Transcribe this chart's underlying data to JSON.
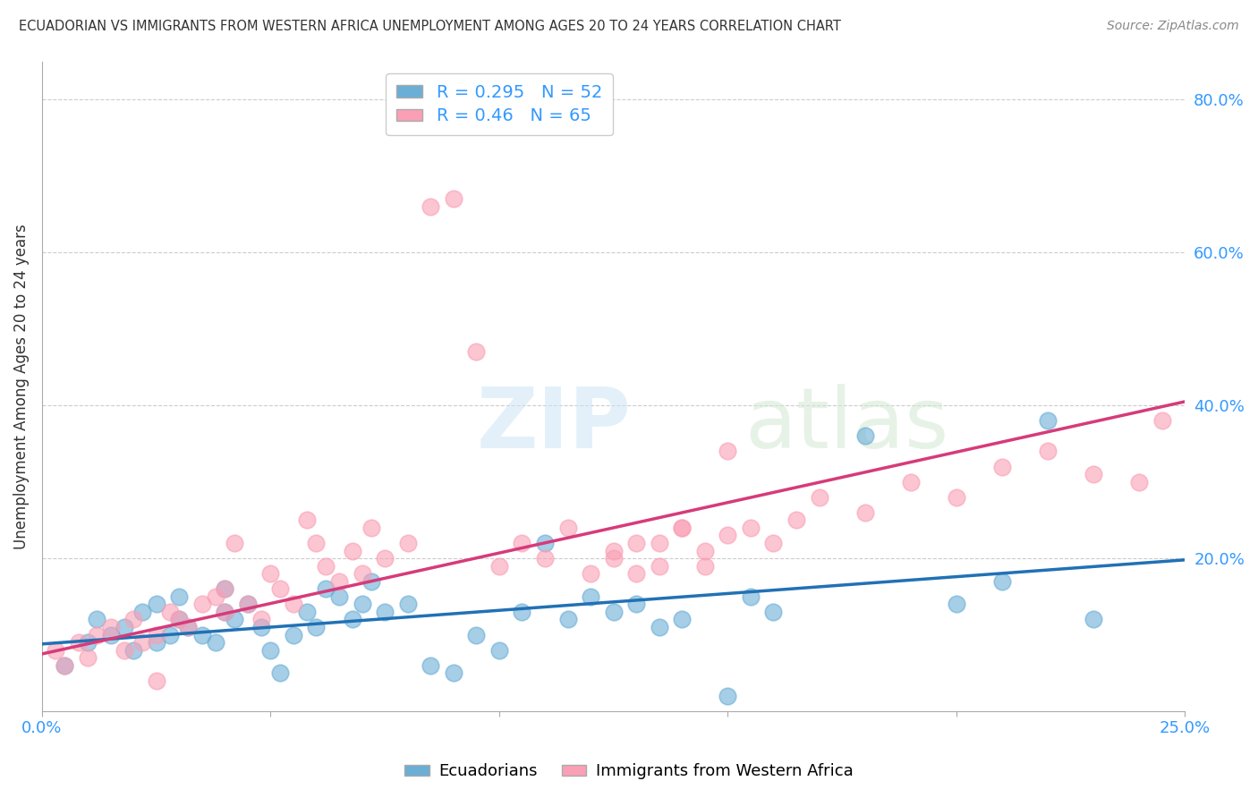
{
  "title": "ECUADORIAN VS IMMIGRANTS FROM WESTERN AFRICA UNEMPLOYMENT AMONG AGES 20 TO 24 YEARS CORRELATION CHART",
  "source": "Source: ZipAtlas.com",
  "ylabel": "Unemployment Among Ages 20 to 24 years",
  "xlim": [
    0.0,
    0.25
  ],
  "ylim": [
    0.0,
    0.85
  ],
  "xticks": [
    0.0,
    0.05,
    0.1,
    0.15,
    0.2,
    0.25
  ],
  "xtick_labels": [
    "0.0%",
    "",
    "",
    "",
    "",
    "25.0%"
  ],
  "yticks_right": [
    0.0,
    0.2,
    0.4,
    0.6,
    0.8
  ],
  "ytick_labels_right": [
    "",
    "20.0%",
    "40.0%",
    "60.0%",
    "80.0%"
  ],
  "blue_color": "#6baed6",
  "blue_line_color": "#2171b5",
  "pink_color": "#fa9fb5",
  "pink_line_color": "#d63b7a",
  "R_blue": 0.295,
  "N_blue": 52,
  "R_pink": 0.46,
  "N_pink": 65,
  "watermark_zip": "ZIP",
  "watermark_atlas": "atlas",
  "legend_labels": [
    "Ecuadorians",
    "Immigrants from Western Africa"
  ],
  "blue_line_x0": 0.0,
  "blue_line_y0": 0.088,
  "blue_line_x1": 0.25,
  "blue_line_y1": 0.198,
  "pink_line_x0": 0.0,
  "pink_line_y0": 0.075,
  "pink_line_x1": 0.25,
  "pink_line_y1": 0.405,
  "blue_scatter_x": [
    0.005,
    0.01,
    0.012,
    0.015,
    0.018,
    0.02,
    0.022,
    0.025,
    0.025,
    0.028,
    0.03,
    0.03,
    0.032,
    0.035,
    0.038,
    0.04,
    0.04,
    0.042,
    0.045,
    0.048,
    0.05,
    0.052,
    0.055,
    0.058,
    0.06,
    0.062,
    0.065,
    0.068,
    0.07,
    0.072,
    0.075,
    0.08,
    0.085,
    0.09,
    0.095,
    0.1,
    0.105,
    0.11,
    0.115,
    0.12,
    0.125,
    0.13,
    0.135,
    0.14,
    0.15,
    0.155,
    0.16,
    0.18,
    0.2,
    0.21,
    0.22,
    0.23
  ],
  "blue_scatter_y": [
    0.06,
    0.09,
    0.12,
    0.1,
    0.11,
    0.08,
    0.13,
    0.09,
    0.14,
    0.1,
    0.12,
    0.15,
    0.11,
    0.1,
    0.09,
    0.13,
    0.16,
    0.12,
    0.14,
    0.11,
    0.08,
    0.05,
    0.1,
    0.13,
    0.11,
    0.16,
    0.15,
    0.12,
    0.14,
    0.17,
    0.13,
    0.14,
    0.06,
    0.05,
    0.1,
    0.08,
    0.13,
    0.22,
    0.12,
    0.15,
    0.13,
    0.14,
    0.11,
    0.12,
    0.02,
    0.15,
    0.13,
    0.36,
    0.14,
    0.17,
    0.38,
    0.12
  ],
  "pink_scatter_x": [
    0.003,
    0.005,
    0.008,
    0.01,
    0.012,
    0.015,
    0.018,
    0.02,
    0.022,
    0.025,
    0.025,
    0.028,
    0.03,
    0.032,
    0.035,
    0.038,
    0.04,
    0.04,
    0.042,
    0.045,
    0.048,
    0.05,
    0.052,
    0.055,
    0.058,
    0.06,
    0.062,
    0.065,
    0.068,
    0.07,
    0.072,
    0.075,
    0.08,
    0.085,
    0.09,
    0.095,
    0.1,
    0.105,
    0.11,
    0.115,
    0.12,
    0.125,
    0.13,
    0.135,
    0.14,
    0.145,
    0.15,
    0.155,
    0.16,
    0.165,
    0.17,
    0.18,
    0.19,
    0.2,
    0.21,
    0.22,
    0.23,
    0.24,
    0.245,
    0.125,
    0.13,
    0.135,
    0.14,
    0.145,
    0.15
  ],
  "pink_scatter_y": [
    0.08,
    0.06,
    0.09,
    0.07,
    0.1,
    0.11,
    0.08,
    0.12,
    0.09,
    0.1,
    0.04,
    0.13,
    0.12,
    0.11,
    0.14,
    0.15,
    0.13,
    0.16,
    0.22,
    0.14,
    0.12,
    0.18,
    0.16,
    0.14,
    0.25,
    0.22,
    0.19,
    0.17,
    0.21,
    0.18,
    0.24,
    0.2,
    0.22,
    0.66,
    0.67,
    0.47,
    0.19,
    0.22,
    0.2,
    0.24,
    0.18,
    0.21,
    0.22,
    0.19,
    0.24,
    0.21,
    0.34,
    0.24,
    0.22,
    0.25,
    0.28,
    0.26,
    0.3,
    0.28,
    0.32,
    0.34,
    0.31,
    0.3,
    0.38,
    0.2,
    0.18,
    0.22,
    0.24,
    0.19,
    0.23
  ]
}
